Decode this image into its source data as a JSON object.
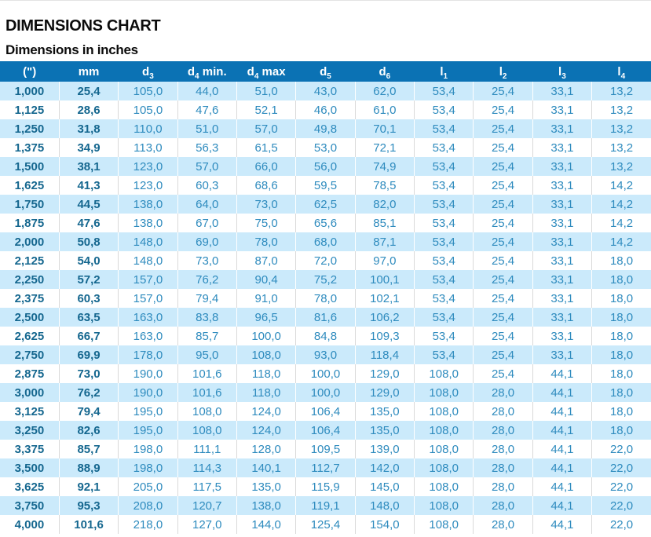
{
  "title": "DIMENSIONS CHART",
  "subtitle": "Dimensions in inches",
  "colors": {
    "header_bg": "#0b72b4",
    "row_alt_bg": "#cbeafb",
    "row_bg": "#ffffff",
    "key_text": "#15678f",
    "value_text": "#2e8bbe",
    "header_text": "#ffffff"
  },
  "table": {
    "columns": [
      {
        "base": "(\")",
        "sub": "",
        "suffix": ""
      },
      {
        "base": "mm",
        "sub": "",
        "suffix": ""
      },
      {
        "base": "d",
        "sub": "3",
        "suffix": ""
      },
      {
        "base": "d",
        "sub": "4",
        "suffix": " min."
      },
      {
        "base": "d",
        "sub": "4",
        "suffix": " max"
      },
      {
        "base": "d",
        "sub": "5",
        "suffix": ""
      },
      {
        "base": "d",
        "sub": "6",
        "suffix": ""
      },
      {
        "base": "l",
        "sub": "1",
        "suffix": ""
      },
      {
        "base": "l",
        "sub": "2",
        "suffix": ""
      },
      {
        "base": "l",
        "sub": "3",
        "suffix": ""
      },
      {
        "base": "l",
        "sub": "4",
        "suffix": ""
      }
    ],
    "key_column_count": 2,
    "rows": [
      [
        "1,000",
        "25,4",
        "105,0",
        "44,0",
        "51,0",
        "43,0",
        "62,0",
        "53,4",
        "25,4",
        "33,1",
        "13,2"
      ],
      [
        "1,125",
        "28,6",
        "105,0",
        "47,6",
        "52,1",
        "46,0",
        "61,0",
        "53,4",
        "25,4",
        "33,1",
        "13,2"
      ],
      [
        "1,250",
        "31,8",
        "110,0",
        "51,0",
        "57,0",
        "49,8",
        "70,1",
        "53,4",
        "25,4",
        "33,1",
        "13,2"
      ],
      [
        "1,375",
        "34,9",
        "113,0",
        "56,3",
        "61,5",
        "53,0",
        "72,1",
        "53,4",
        "25,4",
        "33,1",
        "13,2"
      ],
      [
        "1,500",
        "38,1",
        "123,0",
        "57,0",
        "66,0",
        "56,0",
        "74,9",
        "53,4",
        "25,4",
        "33,1",
        "13,2"
      ],
      [
        "1,625",
        "41,3",
        "123,0",
        "60,3",
        "68,6",
        "59,5",
        "78,5",
        "53,4",
        "25,4",
        "33,1",
        "14,2"
      ],
      [
        "1,750",
        "44,5",
        "138,0",
        "64,0",
        "73,0",
        "62,5",
        "82,0",
        "53,4",
        "25,4",
        "33,1",
        "14,2"
      ],
      [
        "1,875",
        "47,6",
        "138,0",
        "67,0",
        "75,0",
        "65,6",
        "85,1",
        "53,4",
        "25,4",
        "33,1",
        "14,2"
      ],
      [
        "2,000",
        "50,8",
        "148,0",
        "69,0",
        "78,0",
        "68,0",
        "87,1",
        "53,4",
        "25,4",
        "33,1",
        "14,2"
      ],
      [
        "2,125",
        "54,0",
        "148,0",
        "73,0",
        "87,0",
        "72,0",
        "97,0",
        "53,4",
        "25,4",
        "33,1",
        "18,0"
      ],
      [
        "2,250",
        "57,2",
        "157,0",
        "76,2",
        "90,4",
        "75,2",
        "100,1",
        "53,4",
        "25,4",
        "33,1",
        "18,0"
      ],
      [
        "2,375",
        "60,3",
        "157,0",
        "79,4",
        "91,0",
        "78,0",
        "102,1",
        "53,4",
        "25,4",
        "33,1",
        "18,0"
      ],
      [
        "2,500",
        "63,5",
        "163,0",
        "83,8",
        "96,5",
        "81,6",
        "106,2",
        "53,4",
        "25,4",
        "33,1",
        "18,0"
      ],
      [
        "2,625",
        "66,7",
        "163,0",
        "85,7",
        "100,0",
        "84,8",
        "109,3",
        "53,4",
        "25,4",
        "33,1",
        "18,0"
      ],
      [
        "2,750",
        "69,9",
        "178,0",
        "95,0",
        "108,0",
        "93,0",
        "118,4",
        "53,4",
        "25,4",
        "33,1",
        "18,0"
      ],
      [
        "2,875",
        "73,0",
        "190,0",
        "101,6",
        "118,0",
        "100,0",
        "129,0",
        "108,0",
        "25,4",
        "44,1",
        "18,0"
      ],
      [
        "3,000",
        "76,2",
        "190,0",
        "101,6",
        "118,0",
        "100,0",
        "129,0",
        "108,0",
        "28,0",
        "44,1",
        "18,0"
      ],
      [
        "3,125",
        "79,4",
        "195,0",
        "108,0",
        "124,0",
        "106,4",
        "135,0",
        "108,0",
        "28,0",
        "44,1",
        "18,0"
      ],
      [
        "3,250",
        "82,6",
        "195,0",
        "108,0",
        "124,0",
        "106,4",
        "135,0",
        "108,0",
        "28,0",
        "44,1",
        "18,0"
      ],
      [
        "3,375",
        "85,7",
        "198,0",
        "111,1",
        "128,0",
        "109,5",
        "139,0",
        "108,0",
        "28,0",
        "44,1",
        "22,0"
      ],
      [
        "3,500",
        "88,9",
        "198,0",
        "114,3",
        "140,1",
        "112,7",
        "142,0",
        "108,0",
        "28,0",
        "44,1",
        "22,0"
      ],
      [
        "3,625",
        "92,1",
        "205,0",
        "117,5",
        "135,0",
        "115,9",
        "145,0",
        "108,0",
        "28,0",
        "44,1",
        "22,0"
      ],
      [
        "3,750",
        "95,3",
        "208,0",
        "120,7",
        "138,0",
        "119,1",
        "148,0",
        "108,0",
        "28,0",
        "44,1",
        "22,0"
      ],
      [
        "4,000",
        "101,6",
        "218,0",
        "127,0",
        "144,0",
        "125,4",
        "154,0",
        "108,0",
        "28,0",
        "44,1",
        "22,0"
      ]
    ]
  }
}
